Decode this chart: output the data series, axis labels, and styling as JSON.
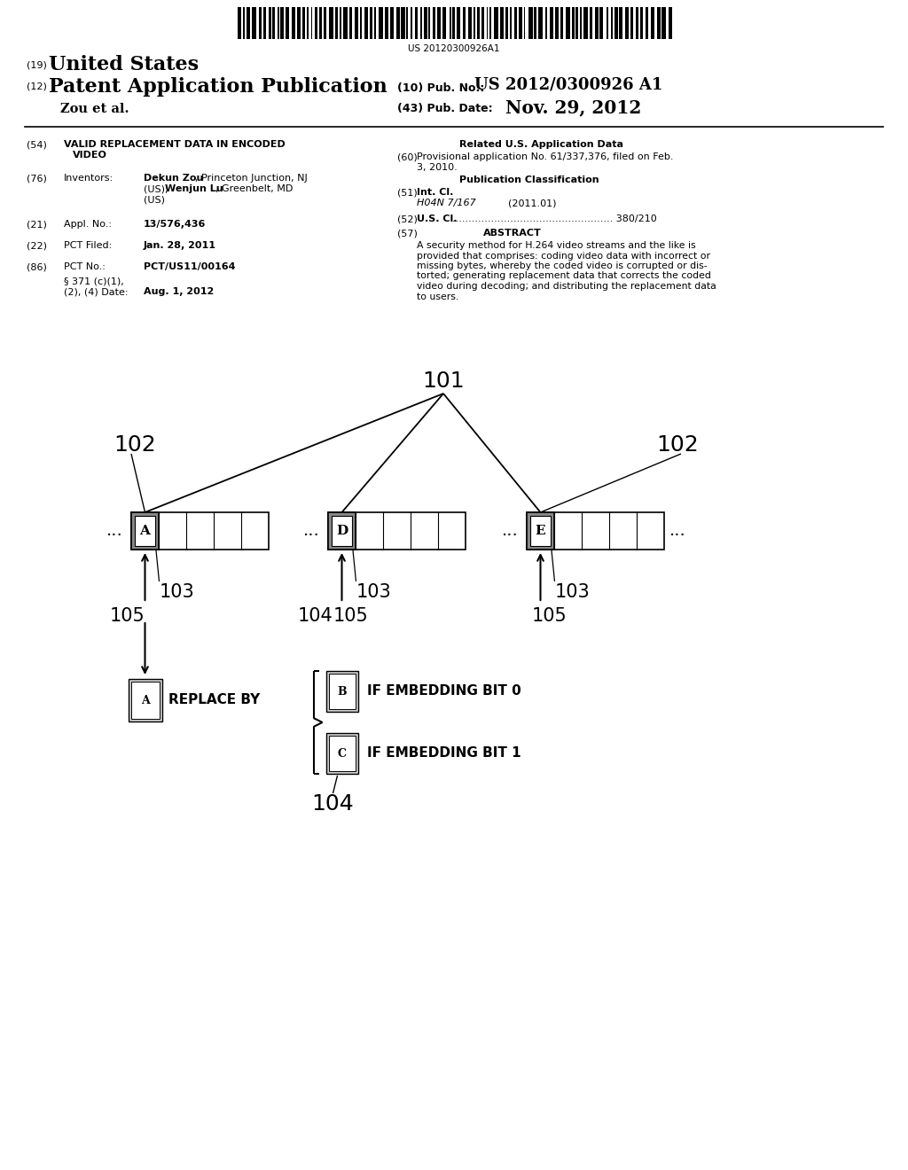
{
  "bg_color": "#ffffff",
  "barcode_text": "US 20120300926A1",
  "pub_no_label": "(10) Pub. No.:",
  "pub_no": "US 2012/0300926 A1",
  "pub_date_label": "(43) Pub. Date:",
  "pub_date": "Nov. 29, 2012",
  "author": "Zou et al.",
  "field54_line1": "VALID REPLACEMENT DATA IN ENCODED",
  "field54_line2": "VIDEO",
  "field76_key": "Inventors:",
  "field76_name1": "Dekun Zou",
  "field76_rest1": ", Princeton Junction, NJ",
  "field76_line2a": "(US); ",
  "field76_name2": "Wenjun Lu",
  "field76_rest2": ", Greenbelt, MD",
  "field76_line3": "(US)",
  "field21_key": "Appl. No.:",
  "field21_val": "13/576,436",
  "field22_key": "PCT Filed:",
  "field22_val": "Jan. 28, 2011",
  "field86_key": "PCT No.:",
  "field86_val": "PCT/US11/00164",
  "field86b_line1": "§ 371 (c)(1),",
  "field86b_line2": "(2), (4) Date:",
  "field86b_val": "Aug. 1, 2012",
  "related_title": "Related U.S. Application Data",
  "field60_val1": "Provisional application No. 61/337,376, filed on Feb.",
  "field60_val2": "3, 2010.",
  "pub_class_title": "Publication Classification",
  "field51_key": "Int. Cl.",
  "field51_val": "H04N 7/167",
  "field51_date": "(2011.01)",
  "field52_key": "U.S. Cl.",
  "field52_dots": ".................................................. 380/210",
  "field57_key": "ABSTRACT",
  "field57_lines": [
    "A security method for H.264 video streams and the like is",
    "provided that comprises: coding video data with incorrect or",
    "missing bytes, whereby the coded video is corrupted or dis-",
    "torted; generating replacement data that corrects the coded",
    "video during decoding; and distributing the replacement data",
    "to users."
  ],
  "label_101": "101",
  "label_102": "102",
  "label_103": "103",
  "label_104": "104",
  "label_105": "105",
  "letter_A": "A",
  "letter_D": "D",
  "letter_E": "E",
  "letter_B": "B",
  "letter_C": "C",
  "replace_by_text": "REPLACE BY",
  "embed0_text": "IF EMBEDDING BIT 0",
  "embed1_text": "IF EMBEDDING BIT 1"
}
